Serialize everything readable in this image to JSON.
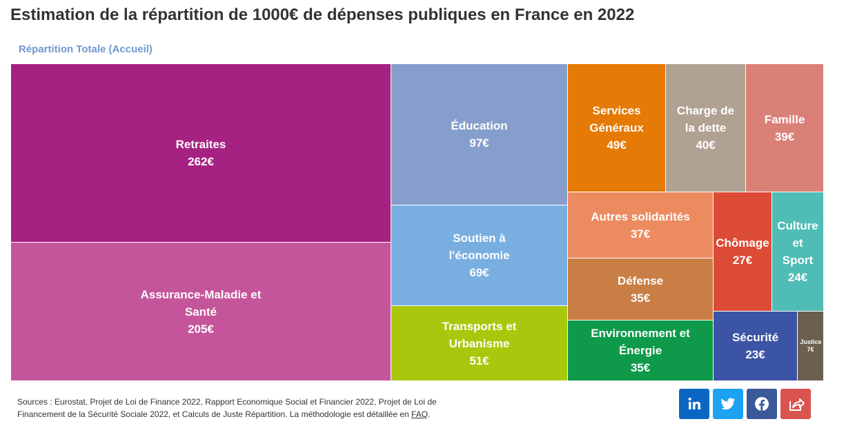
{
  "chart_data": {
    "type": "treemap",
    "title": "Estimation de la répartition de 1000€ de dépenses publiques en France en 2022",
    "subtitle": "Répartition Totale (Accueil)",
    "categories": [
      "Retraites",
      "Assurance-Maladie et Santé",
      "Éducation",
      "Soutien à l'économie",
      "Transports et Urbanisme",
      "Services Généraux",
      "Charge de la dette",
      "Famille",
      "Autres solidarités",
      "Défense",
      "Environnement et Énergie",
      "Chômage",
      "Culture et Sport",
      "Sécurité",
      "Justice"
    ],
    "values": [
      262,
      205,
      97,
      69,
      51,
      49,
      40,
      39,
      37,
      35,
      35,
      27,
      24,
      23,
      7
    ],
    "value_labels": [
      "262€",
      "205€",
      "97€",
      "69€",
      "51€",
      "49€",
      "40€",
      "39€",
      "37€",
      "35€",
      "35€",
      "27€",
      "24€",
      "23€",
      "7€"
    ],
    "colors": [
      "#a62282",
      "#c5559a",
      "#869ecb",
      "#79aee0",
      "#a9c80d",
      "#e57a06",
      "#b0a292",
      "#da8177",
      "#ed8b60",
      "#c97e45",
      "#0e9a4a",
      "#dc4b36",
      "#4fbcb5",
      "#3c54a5",
      "#6b5f4e"
    ],
    "sources": {
      "text": "Sources : Eurostat, Projet de Loi de Finance 2022, Rapport Economique Social et Financier 2022, Projet de Loi de Financement de la Sécurité Sociale 2022, et Calculs de Juste Répartition. La méthodologie est détaillée en",
      "link": "FAQ",
      "end": "."
    }
  }
}
